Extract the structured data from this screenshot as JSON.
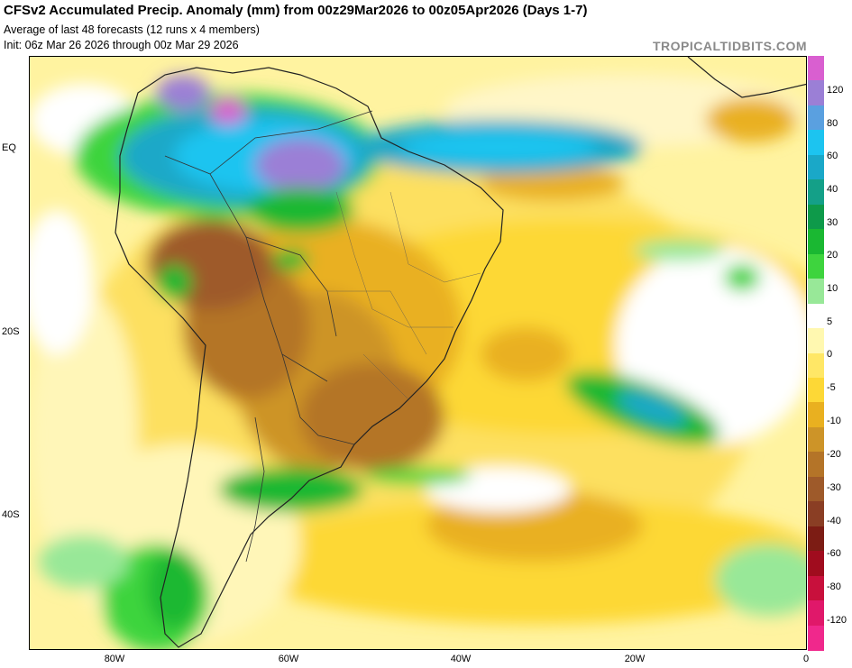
{
  "header": {
    "title": "CFSv2 Accumulated Precip. Anomaly (mm) from 00z29Mar2026 to 00z05Apr2026 (Days 1-7)",
    "subtitle1": "Average of last 48 forecasts (12 runs x 4 members)",
    "subtitle2": "Init: 06z Mar 26 2026 through 00z Mar 29 2026",
    "brand": "TROPICALTIDBITS.COM"
  },
  "axes": {
    "lat_labels": [
      "EQ",
      "20S",
      "40S"
    ],
    "lon_labels": [
      "80W",
      "60W",
      "40W",
      "20W",
      "0"
    ]
  },
  "colorbar": {
    "labels": [
      "120",
      "80",
      "60",
      "40",
      "30",
      "20",
      "10",
      "5",
      "0",
      "-5",
      "-10",
      "-20",
      "-30",
      "-40",
      "-60",
      "-80",
      "-120"
    ],
    "colors": [
      "#d95fd0",
      "#9b7fd6",
      "#5aa0e0",
      "#1cc4f0",
      "#1aa8c8",
      "#14a088",
      "#0e9a4a",
      "#1ab832",
      "#3ed43e",
      "#98e898",
      "#ffffff",
      "#fff8b0",
      "#ffe766",
      "#fdd836",
      "#e9b020",
      "#cd9428",
      "#b47428",
      "#9e5a2a",
      "#8a3e24",
      "#7c1c14",
      "#a00c1e",
      "#c8103c",
      "#e0186a",
      "#f0288c"
    ]
  },
  "map": {
    "features": [
      "precip-anomaly-field",
      "south-america-coastline",
      "country-borders",
      "state-borders"
    ]
  }
}
